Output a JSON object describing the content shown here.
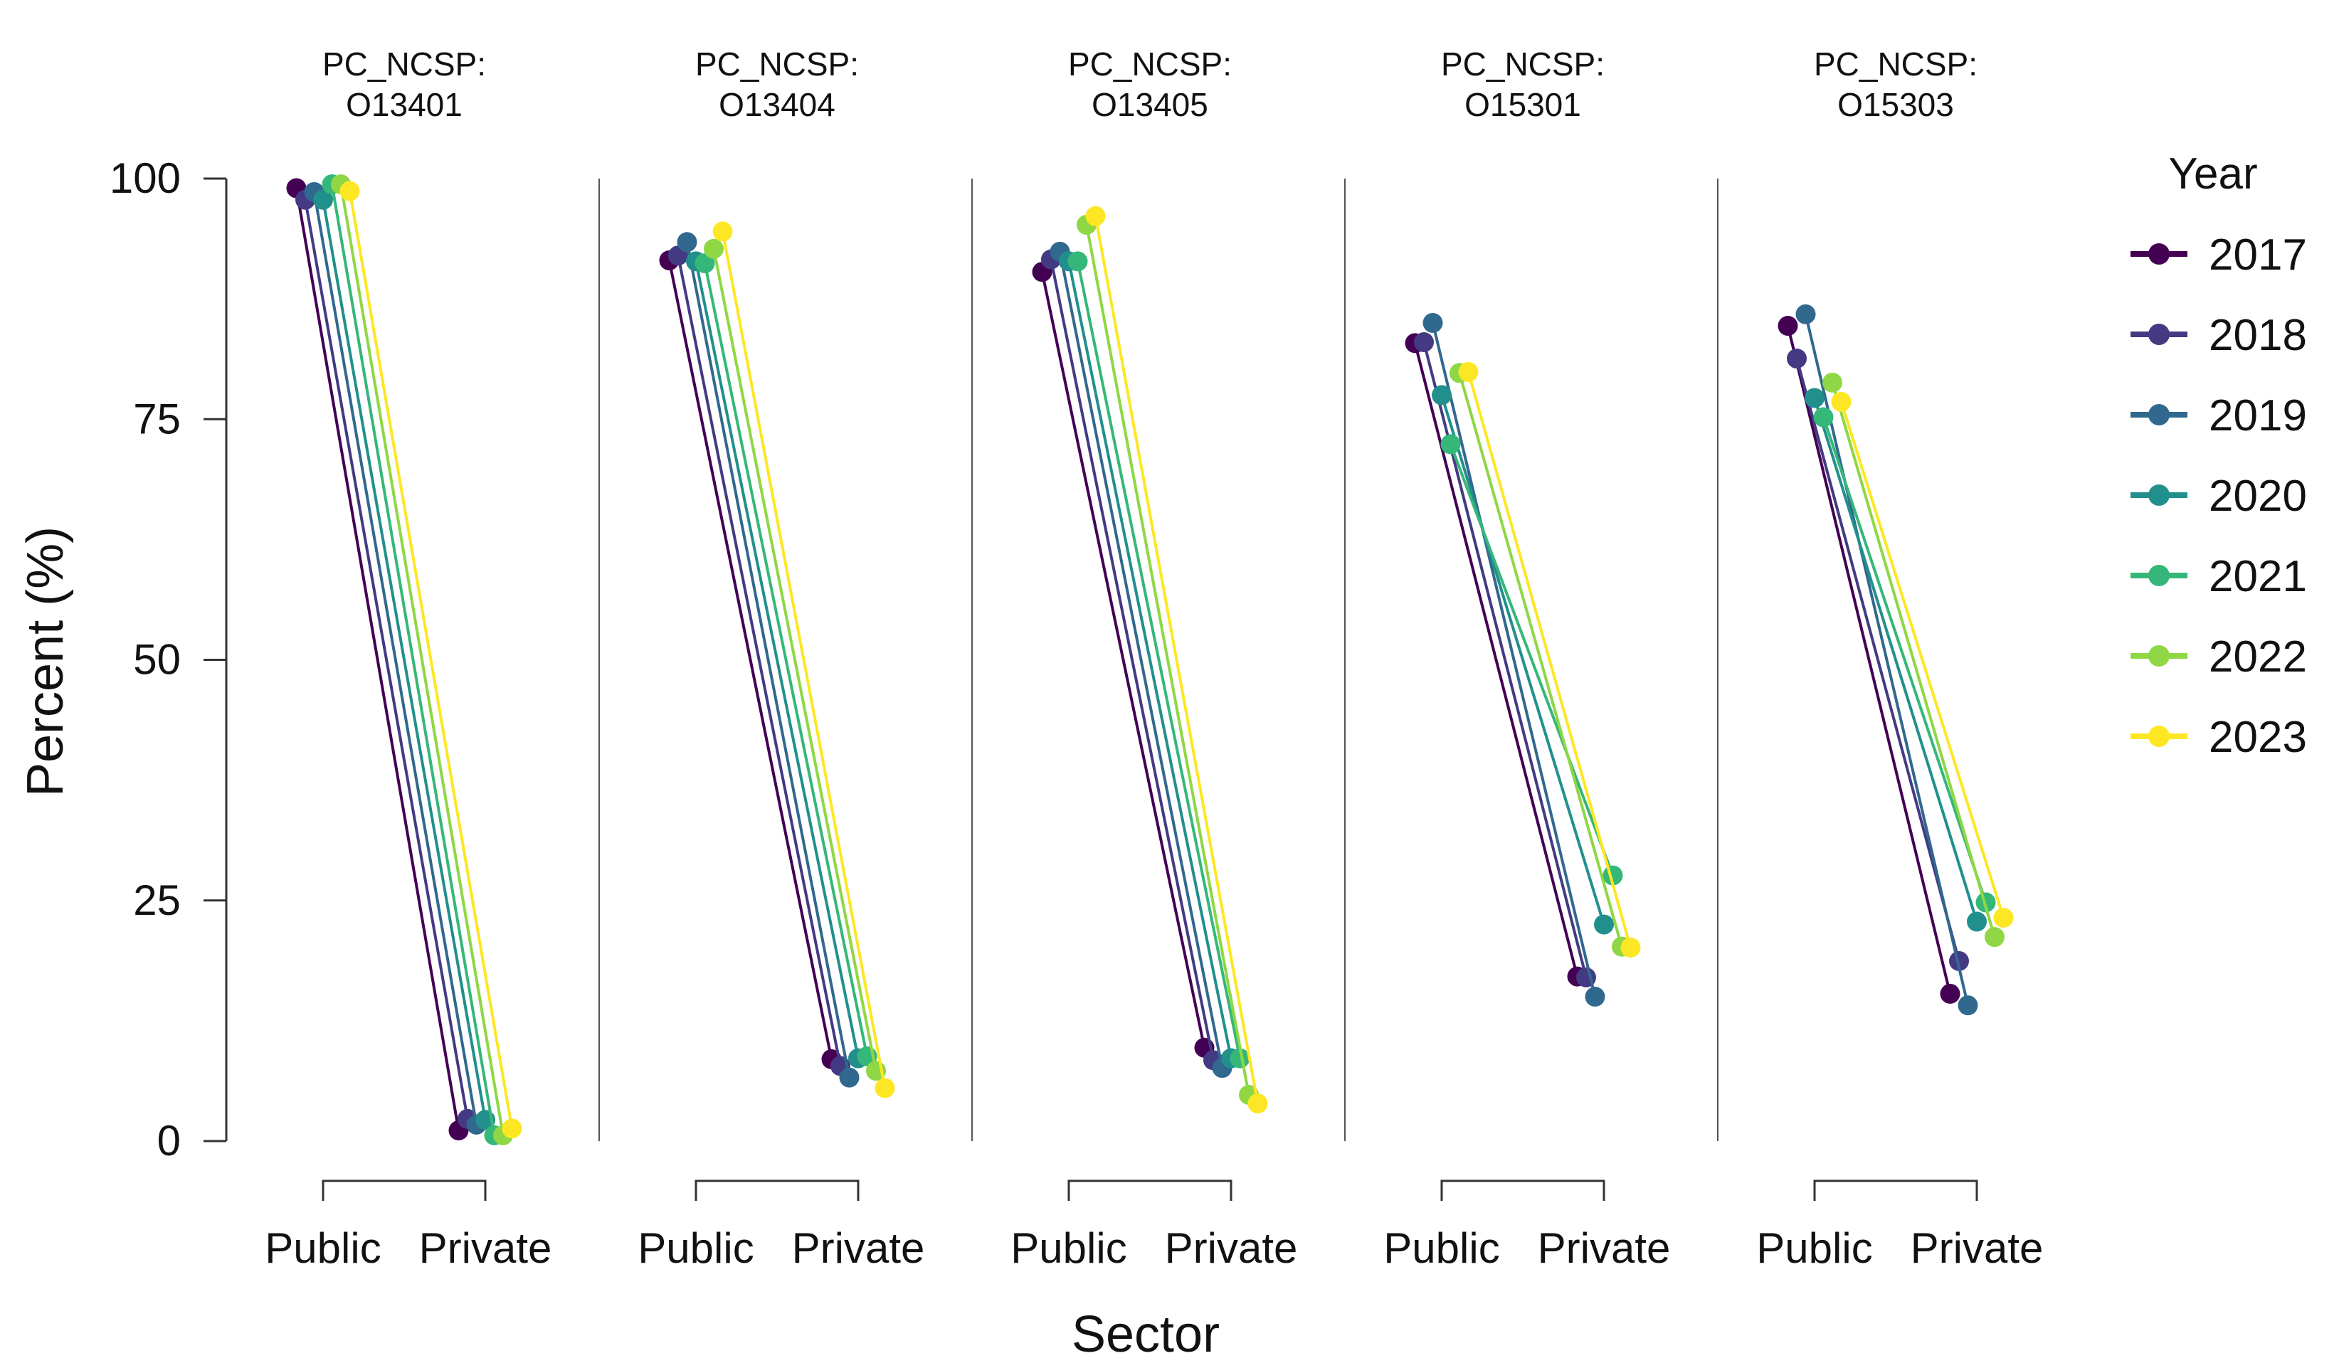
{
  "chart_data": {
    "type": "line",
    "ylabel": "Percent (%)",
    "xlabel": "Sector",
    "ylim": [
      0,
      100
    ],
    "yticks": [
      0,
      25,
      50,
      75,
      100
    ],
    "categories": [
      "Public",
      "Private"
    ],
    "legend": {
      "title": "Year",
      "position": "right",
      "entries": [
        {
          "name": "2017",
          "color": "#440154"
        },
        {
          "name": "2018",
          "color": "#443A83"
        },
        {
          "name": "2019",
          "color": "#31688E"
        },
        {
          "name": "2020",
          "color": "#21908C"
        },
        {
          "name": "2021",
          "color": "#35B779"
        },
        {
          "name": "2022",
          "color": "#8FD744"
        },
        {
          "name": "2023",
          "color": "#FDE725"
        }
      ]
    },
    "facets": [
      {
        "title_line1": "PC_NCSP:",
        "title_line2": "O13401",
        "series": [
          {
            "name": "2017",
            "values": [
              99.0,
              1.1
            ]
          },
          {
            "name": "2018",
            "values": [
              97.8,
              2.3
            ]
          },
          {
            "name": "2019",
            "values": [
              98.6,
              1.7
            ]
          },
          {
            "name": "2020",
            "values": [
              97.8,
              2.2
            ]
          },
          {
            "name": "2021",
            "values": [
              99.4,
              0.6
            ]
          },
          {
            "name": "2022",
            "values": [
              99.4,
              0.6
            ]
          },
          {
            "name": "2023",
            "values": [
              98.7,
              1.3
            ]
          }
        ]
      },
      {
        "title_line1": "PC_NCSP:",
        "title_line2": "O13404",
        "series": [
          {
            "name": "2017",
            "values": [
              91.5,
              8.5
            ]
          },
          {
            "name": "2018",
            "values": [
              92.0,
              7.8
            ]
          },
          {
            "name": "2019",
            "values": [
              93.4,
              6.6
            ]
          },
          {
            "name": "2020",
            "values": [
              91.4,
              8.6
            ]
          },
          {
            "name": "2021",
            "values": [
              91.2,
              8.8
            ]
          },
          {
            "name": "2022",
            "values": [
              92.7,
              7.3
            ]
          },
          {
            "name": "2023",
            "values": [
              94.5,
              5.5
            ]
          }
        ]
      },
      {
        "title_line1": "PC_NCSP:",
        "title_line2": "O13405",
        "series": [
          {
            "name": "2017",
            "values": [
              90.3,
              9.7
            ]
          },
          {
            "name": "2018",
            "values": [
              91.6,
              8.4
            ]
          },
          {
            "name": "2019",
            "values": [
              92.4,
              7.6
            ]
          },
          {
            "name": "2020",
            "values": [
              91.4,
              8.6
            ]
          },
          {
            "name": "2021",
            "values": [
              91.4,
              8.6
            ]
          },
          {
            "name": "2022",
            "values": [
              95.2,
              4.8
            ]
          },
          {
            "name": "2023",
            "values": [
              96.1,
              3.9
            ]
          }
        ]
      },
      {
        "title_line1": "PC_NCSP:",
        "title_line2": "O15301",
        "series": [
          {
            "name": "2017",
            "values": [
              82.9,
              17.1
            ]
          },
          {
            "name": "2018",
            "values": [
              83.0,
              17.0
            ]
          },
          {
            "name": "2019",
            "values": [
              85.0,
              15.0
            ]
          },
          {
            "name": "2020",
            "values": [
              77.5,
              22.5
            ]
          },
          {
            "name": "2021",
            "values": [
              72.4,
              27.6
            ]
          },
          {
            "name": "2022",
            "values": [
              79.8,
              20.2
            ]
          },
          {
            "name": "2023",
            "values": [
              79.9,
              20.1
            ]
          }
        ]
      },
      {
        "title_line1": "PC_NCSP:",
        "title_line2": "O15303",
        "series": [
          {
            "name": "2017",
            "values": [
              84.7,
              15.3
            ]
          },
          {
            "name": "2018",
            "values": [
              81.3,
              18.7
            ]
          },
          {
            "name": "2019",
            "values": [
              85.9,
              14.1
            ]
          },
          {
            "name": "2020",
            "values": [
              77.2,
              22.8
            ]
          },
          {
            "name": "2021",
            "values": [
              75.2,
              24.8
            ]
          },
          {
            "name": "2022",
            "values": [
              78.8,
              21.2
            ]
          },
          {
            "name": "2023",
            "values": [
              76.8,
              23.2
            ]
          }
        ]
      }
    ]
  }
}
